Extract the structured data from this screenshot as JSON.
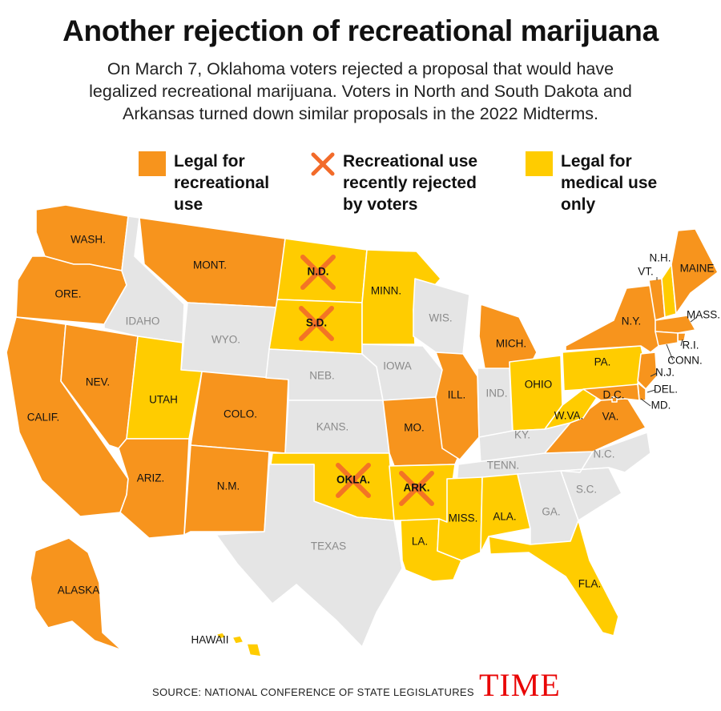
{
  "title": "Another rejection of recreational marijuana",
  "subtitle_lines": [
    "On March 7, Oklahoma voters rejected a proposal that would have",
    "legalized recreational marijuana. Voters in North and South Dakota and",
    "Arkansas turned down similar proposals in the 2022 Midterms."
  ],
  "colors": {
    "recreational": "#f7941d",
    "medical": "#ffcc00",
    "none": "#e5e5e5",
    "rejected_x": "#f26b2a",
    "brand": "#e90606"
  },
  "legend": [
    {
      "key": "recreational",
      "lines": [
        "Legal for",
        "recreational",
        "use"
      ]
    },
    {
      "key": "rejected",
      "lines": [
        "Recreational use",
        "recently rejected",
        "by voters"
      ]
    },
    {
      "key": "medical",
      "lines": [
        "Legal for",
        "medical use",
        "only"
      ]
    }
  ],
  "states": [
    {
      "abbr": "WA",
      "label": "WASH.",
      "status": "recreational"
    },
    {
      "abbr": "OR",
      "label": "ORE.",
      "status": "recreational"
    },
    {
      "abbr": "CA",
      "label": "CALIF.",
      "status": "recreational"
    },
    {
      "abbr": "NV",
      "label": "NEV.",
      "status": "recreational"
    },
    {
      "abbr": "ID",
      "label": "IDAHO",
      "status": "none"
    },
    {
      "abbr": "MT",
      "label": "MONT.",
      "status": "recreational"
    },
    {
      "abbr": "WY",
      "label": "WYO.",
      "status": "none"
    },
    {
      "abbr": "UT",
      "label": "UTAH",
      "status": "medical"
    },
    {
      "abbr": "AZ",
      "label": "ARIZ.",
      "status": "recreational"
    },
    {
      "abbr": "CO",
      "label": "COLO.",
      "status": "recreational"
    },
    {
      "abbr": "NM",
      "label": "N.M.",
      "status": "recreational"
    },
    {
      "abbr": "ND",
      "label": "N.D.",
      "status": "medical",
      "rejected": true
    },
    {
      "abbr": "SD",
      "label": "S.D.",
      "status": "medical",
      "rejected": true
    },
    {
      "abbr": "NE",
      "label": "NEB.",
      "status": "none"
    },
    {
      "abbr": "KS",
      "label": "KANS.",
      "status": "none"
    },
    {
      "abbr": "OK",
      "label": "OKLA.",
      "status": "medical",
      "rejected": true
    },
    {
      "abbr": "TX",
      "label": "TEXAS",
      "status": "none"
    },
    {
      "abbr": "MN",
      "label": "MINN.",
      "status": "medical"
    },
    {
      "abbr": "IA",
      "label": "IOWA",
      "status": "none"
    },
    {
      "abbr": "MO",
      "label": "MO.",
      "status": "recreational"
    },
    {
      "abbr": "AR",
      "label": "ARK.",
      "status": "medical",
      "rejected": true
    },
    {
      "abbr": "LA",
      "label": "LA.",
      "status": "medical"
    },
    {
      "abbr": "WI",
      "label": "WIS.",
      "status": "none"
    },
    {
      "abbr": "IL",
      "label": "ILL.",
      "status": "recreational"
    },
    {
      "abbr": "MI",
      "label": "MICH.",
      "status": "recreational"
    },
    {
      "abbr": "IN",
      "label": "IND.",
      "status": "none"
    },
    {
      "abbr": "OH",
      "label": "OHIO",
      "status": "medical"
    },
    {
      "abbr": "KY",
      "label": "KY.",
      "status": "none"
    },
    {
      "abbr": "TN",
      "label": "TENN.",
      "status": "none"
    },
    {
      "abbr": "MS",
      "label": "MISS.",
      "status": "medical"
    },
    {
      "abbr": "AL",
      "label": "ALA.",
      "status": "medical"
    },
    {
      "abbr": "GA",
      "label": "GA.",
      "status": "none"
    },
    {
      "abbr": "FL",
      "label": "FLA.",
      "status": "medical"
    },
    {
      "abbr": "SC",
      "label": "S.C.",
      "status": "none"
    },
    {
      "abbr": "NC",
      "label": "N.C.",
      "status": "none"
    },
    {
      "abbr": "VA",
      "label": "VA.",
      "status": "recreational"
    },
    {
      "abbr": "WV",
      "label": "W.VA.",
      "status": "medical"
    },
    {
      "abbr": "PA",
      "label": "PA.",
      "status": "medical"
    },
    {
      "abbr": "NY",
      "label": "N.Y.",
      "status": "recreational"
    },
    {
      "abbr": "VT",
      "label": "VT.",
      "status": "recreational"
    },
    {
      "abbr": "NH",
      "label": "N.H.",
      "status": "medical"
    },
    {
      "abbr": "ME",
      "label": "MAINE",
      "status": "recreational"
    },
    {
      "abbr": "MA",
      "label": "MASS.",
      "status": "recreational"
    },
    {
      "abbr": "RI",
      "label": "R.I.",
      "status": "recreational"
    },
    {
      "abbr": "CT",
      "label": "CONN.",
      "status": "recreational"
    },
    {
      "abbr": "NJ",
      "label": "N.J.",
      "status": "recreational"
    },
    {
      "abbr": "DE",
      "label": "DEL.",
      "status": "recreational"
    },
    {
      "abbr": "MD",
      "label": "MD.",
      "status": "recreational"
    },
    {
      "abbr": "DC",
      "label": "D.C.",
      "status": "recreational"
    },
    {
      "abbr": "AK",
      "label": "ALASKA",
      "status": "recreational"
    },
    {
      "abbr": "HI",
      "label": "HAWAII",
      "status": "medical"
    }
  ],
  "source": "SOURCE: NATIONAL CONFERENCE OF STATE LEGISLATURES",
  "brand": "TIME"
}
